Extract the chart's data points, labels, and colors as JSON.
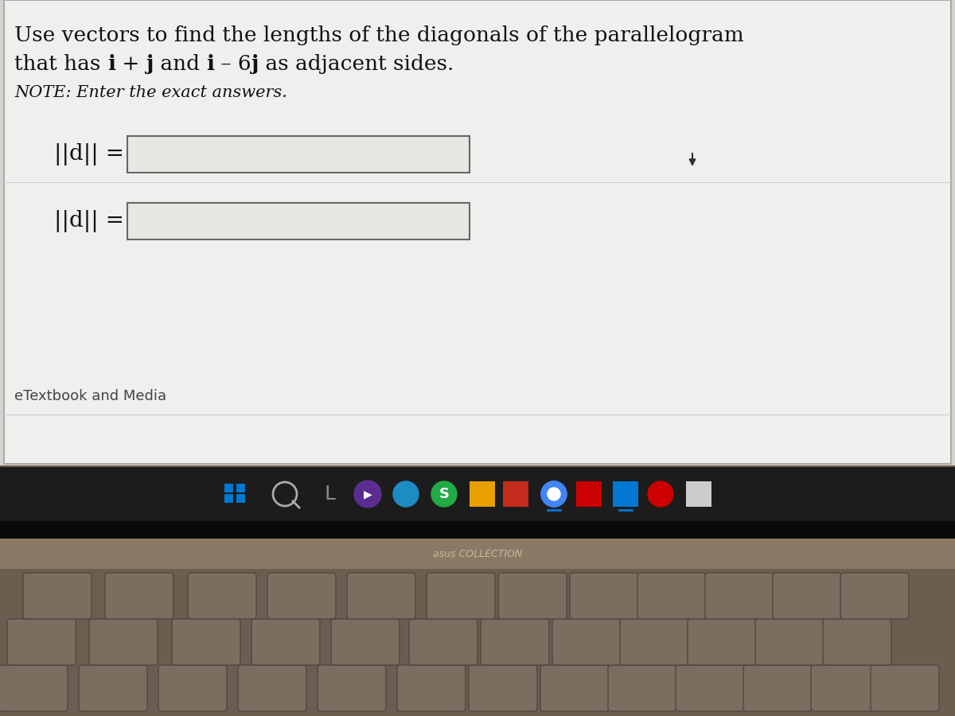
{
  "line1": "Use vectors to find the lengths of the diagonals of the parallelogram",
  "line2_parts": [
    "that has ",
    "i",
    " + ",
    "j",
    " and ",
    "i",
    " – 6",
    "j",
    " as adjacent sides."
  ],
  "line2_bold": [
    false,
    true,
    false,
    true,
    false,
    true,
    false,
    true,
    false
  ],
  "note": "NOTE: Enter the exact answers.",
  "label1": "||d|| =",
  "label2": "||d|| =",
  "etextbook": "eTextbook and Media",
  "asus": "asus COLLECTION",
  "content_bg": "#f0efed",
  "content_border": "#aaaaaa",
  "input_bg": "#e8e7e4",
  "input_border": "#666666",
  "taskbar_bg": "#1c1c1c",
  "black_strip": "#0a0a0a",
  "asus_bar": "#8a7a65",
  "keyboard_bg": "#6a5e50",
  "key_face": "#7a6e60",
  "key_border": "#504840",
  "outer_bg": "#706050"
}
